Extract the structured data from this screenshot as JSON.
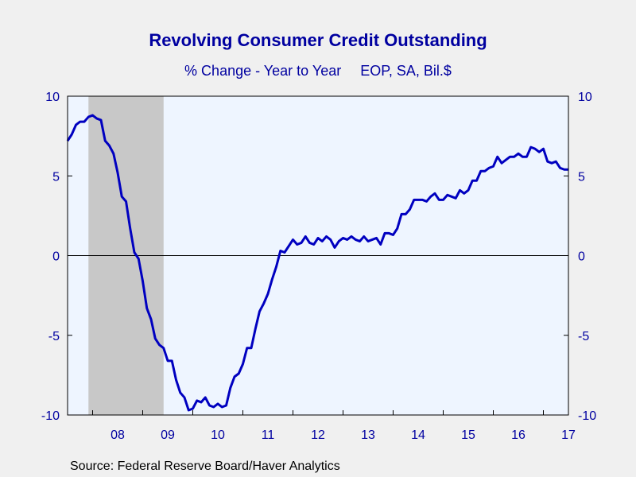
{
  "chart_data": {
    "type": "line",
    "title": "Revolving Consumer Credit Outstanding",
    "subtitle_left": "% Change - Year to Year",
    "subtitle_right": "EOP, SA, Bil.$",
    "source": "Source:  Federal Reserve Board/Haver Analytics",
    "ylim": [
      -10,
      10
    ],
    "y_ticks": [
      10,
      5,
      0,
      -5,
      -10
    ],
    "x_tick_labels": [
      "08",
      "09",
      "10",
      "11",
      "12",
      "13",
      "14",
      "15",
      "16",
      "17"
    ],
    "x_start": 2007.5,
    "x_end": 2017.5,
    "recession_shading": [
      2007.917,
      2009.417
    ],
    "grid": false,
    "zero_line": true,
    "line_color": "#0000c0",
    "series": [
      {
        "x": [
          2007.5,
          2007.583,
          2007.667,
          2007.75,
          2007.833,
          2007.917,
          2008.0,
          2008.083,
          2008.167,
          2008.25,
          2008.333,
          2008.417,
          2008.5,
          2008.583,
          2008.667,
          2008.75,
          2008.833,
          2008.917,
          2009.0,
          2009.083,
          2009.167,
          2009.25,
          2009.333,
          2009.417,
          2009.5,
          2009.583,
          2009.667,
          2009.75,
          2009.833,
          2009.917,
          2010.0,
          2010.083,
          2010.167,
          2010.25,
          2010.333,
          2010.417,
          2010.5,
          2010.583,
          2010.667,
          2010.75,
          2010.833,
          2010.917,
          2011.0,
          2011.083,
          2011.167,
          2011.25,
          2011.333,
          2011.417,
          2011.5,
          2011.583,
          2011.667,
          2011.75,
          2011.833,
          2011.917,
          2012.0,
          2012.083,
          2012.167,
          2012.25,
          2012.333,
          2012.417,
          2012.5,
          2012.583,
          2012.667,
          2012.75,
          2012.833,
          2012.917,
          2013.0,
          2013.083,
          2013.167,
          2013.25,
          2013.333,
          2013.417,
          2013.5,
          2013.583,
          2013.667,
          2013.75,
          2013.833,
          2013.917,
          2014.0,
          2014.083,
          2014.167,
          2014.25,
          2014.333,
          2014.417,
          2014.5,
          2014.583,
          2014.667,
          2014.75,
          2014.833,
          2014.917,
          2015.0,
          2015.083,
          2015.167,
          2015.25,
          2015.333,
          2015.417,
          2015.5,
          2015.583,
          2015.667,
          2015.75,
          2015.833,
          2015.917,
          2016.0,
          2016.083,
          2016.167,
          2016.25,
          2016.333,
          2016.417,
          2016.5,
          2016.583,
          2016.667,
          2016.75,
          2016.833,
          2016.917,
          2017.0,
          2017.083,
          2017.167,
          2017.25,
          2017.333,
          2017.417,
          2017.5
        ],
        "y": [
          7.2,
          7.6,
          8.2,
          8.4,
          8.4,
          8.7,
          8.8,
          8.6,
          8.5,
          7.2,
          6.9,
          6.4,
          5.2,
          3.7,
          3.4,
          1.7,
          0.2,
          -0.2,
          -1.6,
          -3.3,
          -4.0,
          -5.2,
          -5.6,
          -5.8,
          -6.6,
          -6.6,
          -7.8,
          -8.6,
          -8.9,
          -9.7,
          -9.6,
          -9.1,
          -9.2,
          -8.9,
          -9.4,
          -9.5,
          -9.3,
          -9.5,
          -9.4,
          -8.3,
          -7.6,
          -7.4,
          -6.8,
          -5.8,
          -5.8,
          -4.6,
          -3.5,
          -3.0,
          -2.4,
          -1.5,
          -0.7,
          0.3,
          0.2,
          0.6,
          1.0,
          0.7,
          0.8,
          1.2,
          0.8,
          0.7,
          1.1,
          0.9,
          1.2,
          1.0,
          0.5,
          0.9,
          1.1,
          1.0,
          1.2,
          1.0,
          0.9,
          1.2,
          0.9,
          1.0,
          1.1,
          0.7,
          1.4,
          1.4,
          1.3,
          1.7,
          2.6,
          2.6,
          2.9,
          3.5,
          3.5,
          3.5,
          3.4,
          3.7,
          3.9,
          3.5,
          3.5,
          3.8,
          3.7,
          3.6,
          4.1,
          3.9,
          4.1,
          4.7,
          4.7,
          5.3,
          5.3,
          5.5,
          5.6,
          6.2,
          5.8,
          6.0,
          6.2,
          6.2,
          6.4,
          6.2,
          6.2,
          6.8,
          6.7,
          6.5,
          6.7,
          5.9,
          5.8,
          5.9,
          5.5,
          5.4,
          5.4
        ]
      }
    ]
  }
}
